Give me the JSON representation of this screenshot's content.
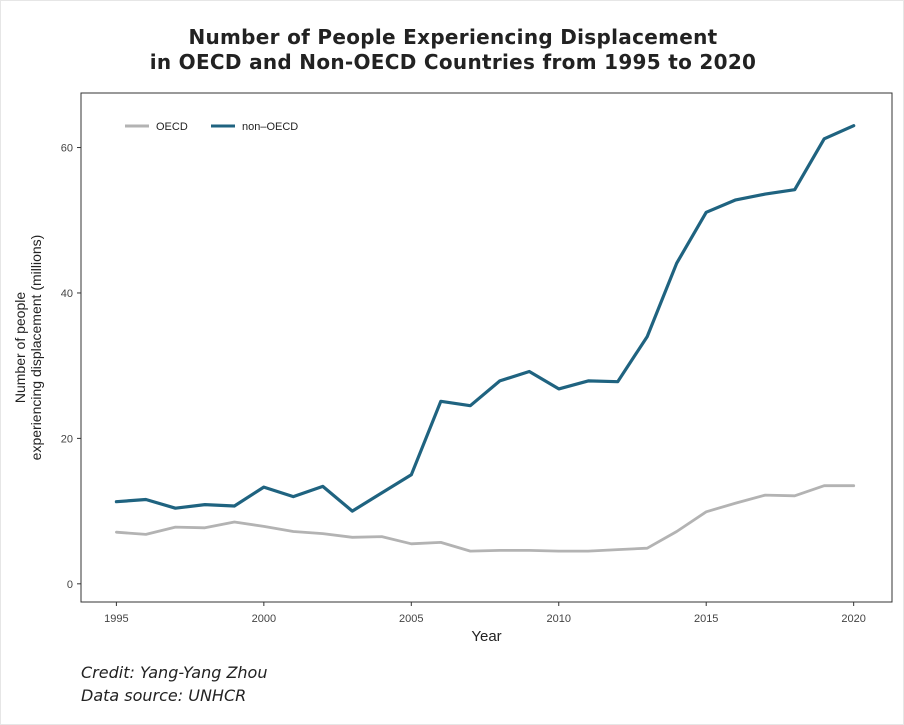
{
  "title_line1": "Number of People Experiencing Displacement",
  "title_line2": "in OECD and Non-OECD Countries from 1995 to 2020",
  "credit": "Credit: Yang-Yang Zhou",
  "data_source": "Data source: UNHCR",
  "chart_data": {
    "type": "line",
    "xlabel": "Year",
    "ylabel_lines": [
      "Number of people",
      "experiencing displacement (millions)"
    ],
    "xlim": [
      1993.8,
      2021.3
    ],
    "ylim": [
      -2.5,
      67.5
    ],
    "x_ticks": [
      1995,
      2000,
      2005,
      2010,
      2015,
      2020
    ],
    "y_ticks": [
      0,
      20,
      40,
      60
    ],
    "grid": false,
    "legend_position": "top-left",
    "x": [
      1995,
      1996,
      1997,
      1998,
      1999,
      2000,
      2001,
      2002,
      2003,
      2004,
      2005,
      2006,
      2007,
      2008,
      2009,
      2010,
      2011,
      2012,
      2013,
      2014,
      2015,
      2016,
      2017,
      2018,
      2019,
      2020
    ],
    "series": [
      {
        "name": "OECD",
        "color": "#b3b3b3",
        "values": [
          7.1,
          6.8,
          7.8,
          7.7,
          8.5,
          7.9,
          7.2,
          6.9,
          6.4,
          6.5,
          5.5,
          5.7,
          4.5,
          4.6,
          4.6,
          4.5,
          4.5,
          4.7,
          4.9,
          7.2,
          9.9,
          11.1,
          12.2,
          12.1,
          13.5,
          13.5
        ]
      },
      {
        "name": "non–OECD",
        "color": "#1f6380",
        "values": [
          11.3,
          11.6,
          10.4,
          10.9,
          10.7,
          13.3,
          12.0,
          13.4,
          10.0,
          12.5,
          15.0,
          25.1,
          24.5,
          27.9,
          29.2,
          26.8,
          27.9,
          27.8,
          34.0,
          44.1,
          51.1,
          52.8,
          53.6,
          54.2,
          61.2,
          63.0
        ]
      }
    ]
  }
}
